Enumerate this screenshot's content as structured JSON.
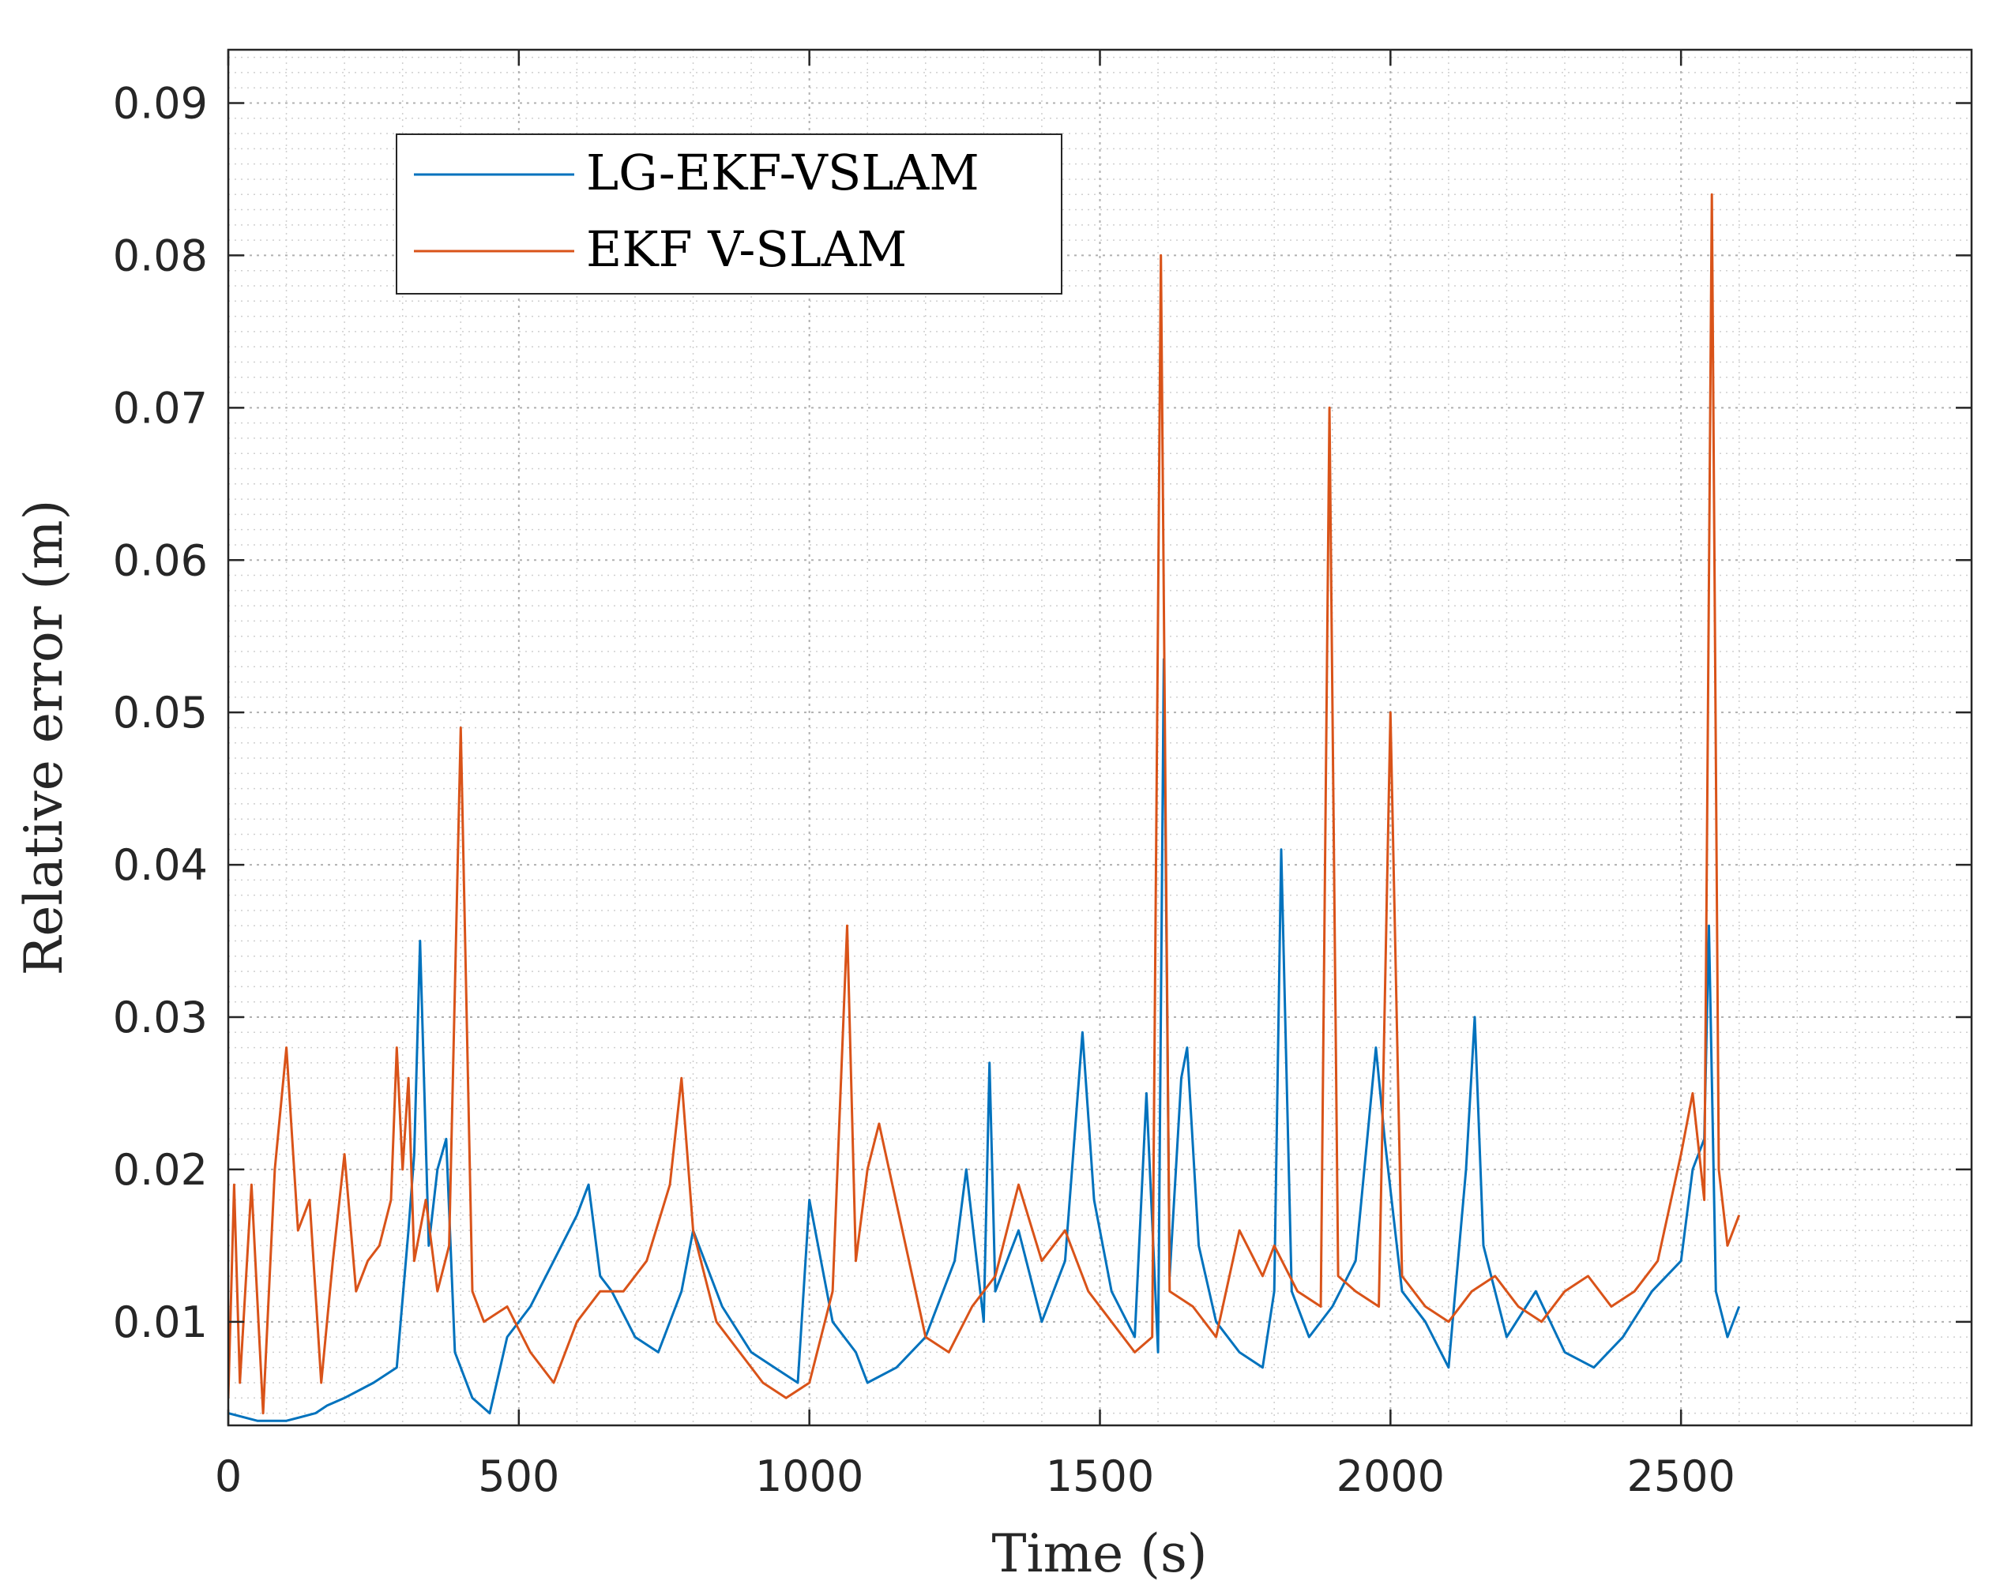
{
  "chart_data": {
    "type": "line",
    "title": "",
    "xlabel": "Time (s)",
    "ylabel": "Relative error (m)",
    "xlim": [
      0,
      3000
    ],
    "ylim": [
      0.0032,
      0.0935
    ],
    "xticks": [
      0,
      500,
      1000,
      1500,
      2000,
      2500
    ],
    "xtick_labels": [
      "0",
      "500",
      "1000",
      "1500",
      "2000",
      "2500"
    ],
    "yticks": [
      0.01,
      0.02,
      0.03,
      0.04,
      0.05,
      0.06,
      0.07,
      0.08,
      0.09
    ],
    "ytick_labels": [
      "0.01",
      "0.02",
      "0.03",
      "0.04",
      "0.05",
      "0.06",
      "0.07",
      "0.08",
      "0.09"
    ],
    "grid": "on (major and minor, dotted)",
    "legend_position": "top-left",
    "series": [
      {
        "name": "LG-EKF-VSLAM",
        "color": "#0072BD",
        "x": [
          0,
          50,
          100,
          150,
          170,
          200,
          250,
          290,
          310,
          320,
          330,
          345,
          360,
          375,
          390,
          420,
          450,
          480,
          520,
          560,
          600,
          620,
          640,
          660,
          700,
          740,
          780,
          800,
          850,
          900,
          940,
          980,
          1000,
          1040,
          1080,
          1100,
          1150,
          1200,
          1250,
          1270,
          1300,
          1310,
          1320,
          1360,
          1400,
          1440,
          1470,
          1490,
          1520,
          1560,
          1580,
          1600,
          1610,
          1620,
          1640,
          1650,
          1670,
          1700,
          1740,
          1780,
          1800,
          1812,
          1830,
          1860,
          1900,
          1940,
          1975,
          1990,
          2020,
          2060,
          2100,
          2130,
          2145,
          2160,
          2200,
          2250,
          2300,
          2350,
          2400,
          2450,
          2500,
          2520,
          2540,
          2548,
          2560,
          2580,
          2600
        ],
        "y": [
          0.004,
          0.0035,
          0.0035,
          0.004,
          0.0045,
          0.005,
          0.006,
          0.007,
          0.016,
          0.021,
          0.035,
          0.015,
          0.02,
          0.022,
          0.008,
          0.005,
          0.004,
          0.009,
          0.011,
          0.014,
          0.017,
          0.019,
          0.013,
          0.012,
          0.009,
          0.008,
          0.012,
          0.016,
          0.011,
          0.008,
          0.007,
          0.006,
          0.018,
          0.01,
          0.008,
          0.006,
          0.007,
          0.009,
          0.014,
          0.02,
          0.01,
          0.027,
          0.012,
          0.016,
          0.01,
          0.014,
          0.029,
          0.018,
          0.012,
          0.009,
          0.025,
          0.008,
          0.0535,
          0.013,
          0.026,
          0.028,
          0.015,
          0.01,
          0.008,
          0.007,
          0.012,
          0.041,
          0.012,
          0.009,
          0.011,
          0.014,
          0.028,
          0.022,
          0.012,
          0.01,
          0.007,
          0.02,
          0.03,
          0.015,
          0.009,
          0.012,
          0.008,
          0.007,
          0.009,
          0.012,
          0.014,
          0.02,
          0.022,
          0.036,
          0.012,
          0.009,
          0.011
        ]
      },
      {
        "name": "EKF V-SLAM",
        "color": "#D95319",
        "x": [
          0,
          10,
          20,
          40,
          60,
          80,
          100,
          120,
          140,
          160,
          180,
          200,
          220,
          240,
          260,
          280,
          290,
          300,
          310,
          320,
          340,
          360,
          380,
          400,
          420,
          440,
          480,
          520,
          560,
          600,
          640,
          680,
          720,
          760,
          780,
          800,
          840,
          880,
          920,
          960,
          1000,
          1040,
          1065,
          1080,
          1100,
          1120,
          1160,
          1200,
          1240,
          1280,
          1320,
          1360,
          1400,
          1440,
          1480,
          1520,
          1560,
          1590,
          1605,
          1620,
          1660,
          1700,
          1740,
          1780,
          1800,
          1840,
          1880,
          1895,
          1910,
          1940,
          1980,
          2000,
          2020,
          2060,
          2100,
          2140,
          2180,
          2220,
          2260,
          2300,
          2340,
          2380,
          2420,
          2460,
          2500,
          2520,
          2540,
          2553,
          2565,
          2580,
          2600
        ],
        "y": [
          0.005,
          0.019,
          0.006,
          0.019,
          0.004,
          0.02,
          0.028,
          0.016,
          0.018,
          0.006,
          0.014,
          0.021,
          0.012,
          0.014,
          0.015,
          0.018,
          0.028,
          0.02,
          0.026,
          0.014,
          0.018,
          0.012,
          0.015,
          0.049,
          0.012,
          0.01,
          0.011,
          0.008,
          0.006,
          0.01,
          0.012,
          0.012,
          0.014,
          0.019,
          0.026,
          0.016,
          0.01,
          0.008,
          0.006,
          0.005,
          0.006,
          0.012,
          0.036,
          0.014,
          0.02,
          0.023,
          0.016,
          0.009,
          0.008,
          0.011,
          0.013,
          0.019,
          0.014,
          0.016,
          0.012,
          0.01,
          0.008,
          0.009,
          0.08,
          0.012,
          0.011,
          0.009,
          0.016,
          0.013,
          0.015,
          0.012,
          0.011,
          0.07,
          0.013,
          0.012,
          0.011,
          0.05,
          0.013,
          0.011,
          0.01,
          0.012,
          0.013,
          0.011,
          0.01,
          0.012,
          0.013,
          0.011,
          0.012,
          0.014,
          0.021,
          0.025,
          0.018,
          0.084,
          0.02,
          0.015,
          0.017
        ]
      }
    ]
  }
}
